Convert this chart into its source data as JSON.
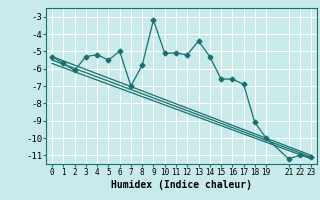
{
  "xlabel": "Humidex (Indice chaleur)",
  "bg_color": "#c8eaea",
  "grid_color": "#ffffff",
  "line_color": "#1a7070",
  "ylim": [
    -11.5,
    -2.5
  ],
  "xlim": [
    -0.5,
    23.5
  ],
  "yticks": [
    -3,
    -4,
    -5,
    -6,
    -7,
    -8,
    -9,
    -10,
    -11
  ],
  "xticks": [
    0,
    1,
    2,
    3,
    4,
    5,
    6,
    7,
    8,
    9,
    10,
    11,
    12,
    13,
    14,
    15,
    16,
    17,
    18,
    19,
    21,
    22,
    23
  ],
  "main_line_x": [
    0,
    1,
    2,
    3,
    4,
    5,
    6,
    7,
    8,
    9,
    10,
    11,
    12,
    13,
    14,
    15,
    16,
    17,
    18,
    19,
    21,
    22,
    23
  ],
  "main_line_y": [
    -5.3,
    -5.7,
    -6.1,
    -5.3,
    -5.2,
    -5.5,
    -5.0,
    -7.0,
    -5.8,
    -3.2,
    -5.1,
    -5.1,
    -5.2,
    -4.4,
    -5.3,
    -6.6,
    -6.6,
    -6.9,
    -9.1,
    -10.0,
    -11.2,
    -11.0,
    -11.1
  ],
  "line2_x": [
    0,
    23
  ],
  "line2_y": [
    -5.3,
    -11.0
  ],
  "line3_x": [
    0,
    23
  ],
  "line3_y": [
    -5.5,
    -11.1
  ],
  "line4_x": [
    0,
    23
  ],
  "line4_y": [
    -5.7,
    -11.2
  ]
}
